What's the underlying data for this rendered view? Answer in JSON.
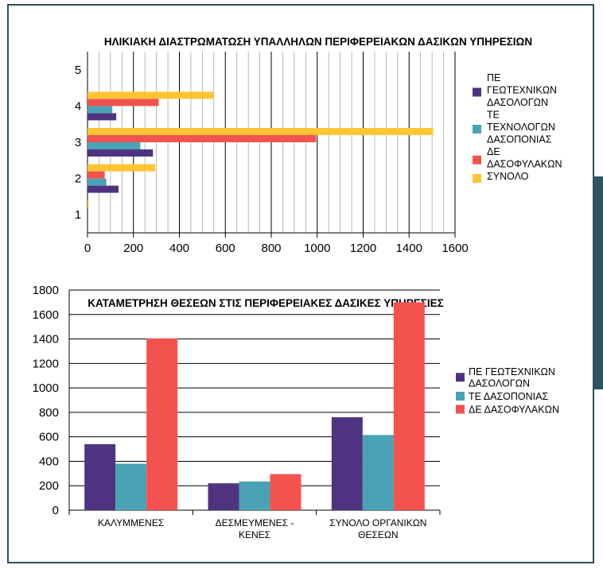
{
  "colors": {
    "frame": "#2f4f5f",
    "purple": "#4e3480",
    "teal": "#4aa3b5",
    "red": "#f4524f",
    "yellow": "#fdc535",
    "grid": "#000000"
  },
  "chart_data": [
    {
      "type": "bar",
      "orientation": "horizontal",
      "title": "ΗΛΙΚΙΑΚΗ ΔΙΑΣΤΡΩΜΑΤΩΣΗ ΥΠΑΛΛΗΛΩΝ ΠΕΡΙΦΕΡΕΙΑΚΩΝ ΔΑΣΙΚΩΝ ΥΠΗΡΕΣΙΩΝ",
      "categories": [
        "1",
        "2",
        "3",
        "4",
        "5"
      ],
      "xlim": [
        0,
        1600
      ],
      "x_ticks": [
        "0",
        "200",
        "400",
        "600",
        "800",
        "1000",
        "1200",
        "1400",
        "1600"
      ],
      "grid": "vertical",
      "legend_position": "right",
      "series": [
        {
          "name": "ΠΕ ΓΕΩΤΕΧΝΙΚΩΝ ΔΑΣΟΛΟΓΩΝ",
          "legend_lines": [
            "ΠΕ",
            "ΓΕΩΤΕΧΝΙΚΩΝ",
            "ΔΑΣΟΛΟΓΩΝ"
          ],
          "color": "#4e3480",
          "values": [
            0,
            135,
            285,
            125,
            0
          ]
        },
        {
          "name": "ΤΕ ΤΕΧΝΟΛΟΓΩΝ ΔΑΣΟΠΟΝΙΑΣ",
          "legend_lines": [
            "ΤΕ",
            "ΤΕΧΝΟΛΟΓΩΝ",
            "ΔΑΣΟΠΟΝΙΑΣ"
          ],
          "color": "#4aa3b5",
          "values": [
            0,
            82,
            230,
            108,
            0
          ]
        },
        {
          "name": "ΔΕ ΔΑΣΟΦΥΛΑΚΩΝ",
          "legend_lines": [
            "ΔΕ",
            "ΔΑΣΟΦΥΛΑΚΩΝ"
          ],
          "color": "#f4524f",
          "values": [
            0,
            75,
            995,
            310,
            0
          ]
        },
        {
          "name": "ΣΥΝΟΛΟ",
          "legend_lines": [
            "ΣΥΝΟΛΟ"
          ],
          "color": "#fdc535",
          "values": [
            5,
            295,
            1505,
            550,
            0
          ]
        }
      ]
    },
    {
      "type": "bar",
      "orientation": "vertical",
      "title": "ΚΑΤΑΜΕΤΡΗΣΗ ΘΕΣΕΩΝ ΣΤΙΣ ΠΕΡΙΦΕΡΕΙΑΚΕΣ ΔΑΣΙΚΕΣ ΥΠΗΡΕΣΙΕΣ",
      "categories": [
        "ΚΑΛΥΜΜΕΝΕΣ",
        "ΔΕΣΜΕΥΜΕΝΕΣ - ΚΕΝΕΣ",
        "ΣΥΝΟΛΟ ΟΡΓΑΝΙΚΩΝ ΘΕΣΕΩΝ"
      ],
      "category_lines": [
        [
          "ΚΑΛΥΜΜΕΝΕΣ"
        ],
        [
          "ΔΕΣΜΕΥΜΕΝΕΣ -",
          "ΚΕΝΕΣ"
        ],
        [
          "ΣΥΝΟΛΟ ΟΡΓΑΝΙΚΩΝ",
          "ΘΕΣΕΩΝ"
        ]
      ],
      "ylim": [
        0,
        1800
      ],
      "y_ticks": [
        "0",
        "200",
        "400",
        "600",
        "800",
        "1000",
        "1200",
        "1400",
        "1600",
        "1800"
      ],
      "grid": "horizontal",
      "legend_position": "right",
      "series": [
        {
          "name": "ΠΕ ΓΕΩΤΕΧΝΙΚΩΝ ΔΑΣΟΛΟΓΩΝ",
          "legend_lines": [
            "ΠΕ ΓΕΩΤΕΧΝΙΚΩΝ",
            "ΔΑΣΟΛΟΓΩΝ"
          ],
          "color": "#4e3480",
          "values": [
            540,
            220,
            760
          ]
        },
        {
          "name": "ΤΕ ΔΑΣΟΠΟΝΙΑΣ",
          "legend_lines": [
            "ΤΕ ΔΑΣΟΠΟΝΙΑΣ"
          ],
          "color": "#4aa3b5",
          "values": [
            380,
            235,
            615
          ]
        },
        {
          "name": "ΔΕ ΔΑΣΟΦΥΛΑΚΩΝ",
          "legend_lines": [
            "ΔΕ ΔΑΣΟΦΥΛΑΚΩΝ"
          ],
          "color": "#f4524f",
          "values": [
            1405,
            295,
            1700
          ]
        }
      ]
    }
  ]
}
